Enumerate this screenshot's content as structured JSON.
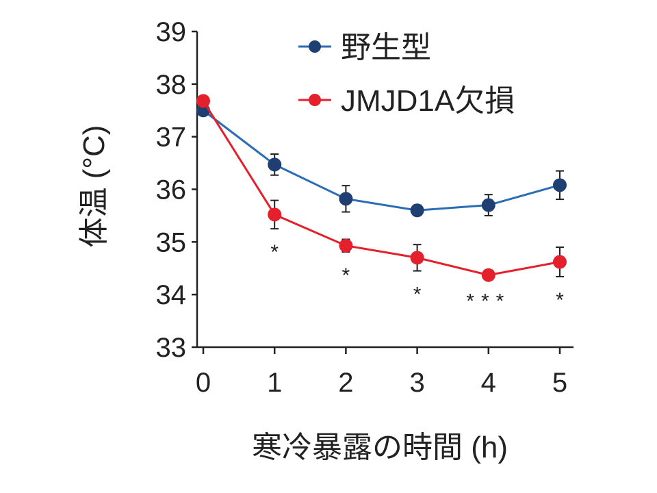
{
  "chart_data": {
    "type": "line",
    "xlabel": "寒冷暴露の時間 (h)",
    "ylabel": "体温 (°C)",
    "x": [
      0,
      1,
      2,
      3,
      4,
      5
    ],
    "xlim": [
      0,
      5
    ],
    "ylim": [
      33,
      39
    ],
    "xticks": [
      0,
      1,
      2,
      3,
      4,
      5
    ],
    "yticks": [
      33,
      34,
      35,
      36,
      37,
      38,
      39
    ],
    "legend_position": "top-right",
    "grid": false,
    "series": [
      {
        "name": "野生型",
        "color": "#2a6db5",
        "marker_color": "#1f3f73",
        "values": [
          37.5,
          36.47,
          35.82,
          35.6,
          35.7,
          36.08
        ],
        "errors": [
          0.05,
          0.2,
          0.25,
          0.1,
          0.2,
          0.27
        ]
      },
      {
        "name": "JMJD1A欠損",
        "color": "#e3202b",
        "marker_color": "#e3202b",
        "values": [
          37.68,
          35.52,
          34.93,
          34.7,
          34.37,
          34.62
        ],
        "errors": [
          0.05,
          0.27,
          0.12,
          0.25,
          0.05,
          0.28
        ]
      }
    ],
    "annotations": [
      {
        "x": 1,
        "text": "*"
      },
      {
        "x": 2,
        "text": "*"
      },
      {
        "x": 3,
        "text": "*"
      },
      {
        "x": 4,
        "text": "***"
      },
      {
        "x": 5,
        "text": "*"
      }
    ]
  }
}
